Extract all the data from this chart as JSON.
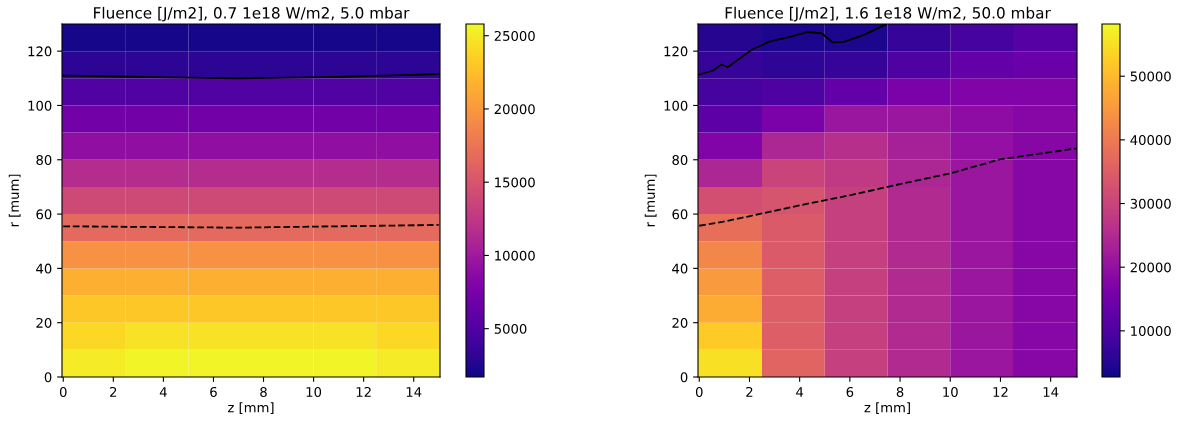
{
  "chart_data": [
    {
      "type": "heatmap",
      "title": "Fluence [J/m2], 0.7 1e18 W/m2, 5.0 mbar",
      "xlabel": "z [mm]",
      "ylabel": "r [mum]",
      "xlim": [
        -0.05,
        15.05
      ],
      "ylim": [
        0,
        130
      ],
      "xticks": [
        0,
        2,
        4,
        6,
        8,
        10,
        12,
        14
      ],
      "yticks": [
        0,
        20,
        40,
        60,
        80,
        100,
        120
      ],
      "clim": [
        1700,
        25800
      ],
      "cticks": [
        5000,
        10000,
        15000,
        20000,
        25000
      ],
      "x": [
        1.25,
        3.75,
        6.25,
        8.75,
        11.25,
        13.75
      ],
      "y": [
        125,
        115,
        105,
        95,
        85,
        75,
        65,
        55,
        45,
        35,
        25,
        15,
        5
      ],
      "cells": [
        [
          2000,
          2000,
          2000,
          2000,
          2000,
          2000
        ],
        [
          3000,
          3000,
          3000,
          3000,
          3000,
          3000
        ],
        [
          5000,
          5000,
          5000,
          5000,
          5000,
          5000
        ],
        [
          7000,
          7000,
          7000,
          7000,
          7000,
          7000
        ],
        [
          9000,
          9000,
          9000,
          9000,
          9000,
          9000
        ],
        [
          11500,
          11500,
          11500,
          11500,
          11500,
          11500
        ],
        [
          14000,
          14000,
          14000,
          14000,
          14000,
          14000
        ],
        [
          16500,
          16500,
          16500,
          16500,
          16500,
          16500
        ],
        [
          19500,
          19500,
          19500,
          19500,
          19500,
          19500
        ],
        [
          21500,
          21500,
          21500,
          21500,
          21500,
          21500
        ],
        [
          23000,
          23000,
          23000,
          23000,
          23000,
          23000
        ],
        [
          24000,
          24500,
          24500,
          24500,
          24500,
          24000
        ],
        [
          25000,
          25500,
          25500,
          25500,
          25500,
          25000
        ]
      ],
      "series": [
        {
          "type": "line",
          "color": "#000000",
          "line_style": "solid",
          "x": [
            0,
            3,
            7,
            11,
            15
          ],
          "values": [
            111,
            110.5,
            110,
            110.5,
            111.5
          ]
        },
        {
          "type": "line",
          "color": "#000000",
          "line_style": "dashed",
          "x": [
            0,
            7,
            15
          ],
          "values": [
            55.5,
            55,
            56
          ]
        }
      ],
      "grid": false
    },
    {
      "type": "heatmap",
      "title": "Fluence [J/m2], 1.6 1e18 W/m2, 50.0 mbar",
      "xlabel": "z [mm]",
      "ylabel": "r [mum]",
      "xlim": [
        -0.05,
        15.05
      ],
      "ylim": [
        0,
        130
      ],
      "xticks": [
        0,
        2,
        4,
        6,
        8,
        10,
        12,
        14
      ],
      "yticks": [
        0,
        20,
        40,
        60,
        80,
        100,
        120
      ],
      "clim": [
        2750,
        58200
      ],
      "cticks": [
        10000,
        20000,
        30000,
        40000,
        50000
      ],
      "x": [
        1.25,
        3.75,
        6.25,
        8.75,
        11.25,
        13.75
      ],
      "y": [
        125,
        115,
        105,
        95,
        85,
        75,
        65,
        55,
        45,
        35,
        25,
        15,
        5
      ],
      "cells": [
        [
          5000,
          4000,
          4000,
          7000,
          9000,
          11000
        ],
        [
          7000,
          6000,
          7000,
          10000,
          13000,
          14000
        ],
        [
          9000,
          10000,
          13000,
          16000,
          17000,
          17000
        ],
        [
          12000,
          16000,
          21000,
          21000,
          19000,
          18000
        ],
        [
          17000,
          24000,
          26000,
          23000,
          20000,
          18000
        ],
        [
          24000,
          30000,
          28000,
          24000,
          21000,
          18000
        ],
        [
          32000,
          33000,
          29000,
          25000,
          21000,
          18000
        ],
        [
          38000,
          34000,
          29000,
          25000,
          21000,
          18000
        ],
        [
          42000,
          34000,
          29000,
          25000,
          21000,
          18000
        ],
        [
          45000,
          35000,
          29000,
          25000,
          21000,
          18000
        ],
        [
          48000,
          35000,
          29000,
          25000,
          21000,
          18000
        ],
        [
          52000,
          35000,
          29000,
          25000,
          21000,
          18000
        ],
        [
          55000,
          36000,
          29000,
          25000,
          21000,
          18000
        ]
      ],
      "series": [
        {
          "type": "line",
          "color": "#000000",
          "line_style": "solid",
          "x": [
            0,
            0.54,
            0.88,
            1.13,
            1.64,
            2.09,
            2.82,
            3.7,
            4.29,
            4.88,
            5.32,
            5.76,
            6.49,
            7.44
          ],
          "values": [
            111.4,
            112.8,
            115.1,
            114.1,
            117.5,
            120.5,
            123.6,
            125.4,
            127,
            126.6,
            123.2,
            123.4,
            125.7,
            129.8
          ]
        },
        {
          "type": "line",
          "color": "#000000",
          "line_style": "dashed",
          "x": [
            0,
            0.91,
            1.94,
            3.99,
            6.04,
            8.03,
            10.01,
            12,
            15.05
          ],
          "values": [
            55.7,
            57.1,
            59.1,
            63.2,
            67,
            71.1,
            75,
            80.2,
            84.2
          ]
        }
      ],
      "grid": false
    }
  ]
}
